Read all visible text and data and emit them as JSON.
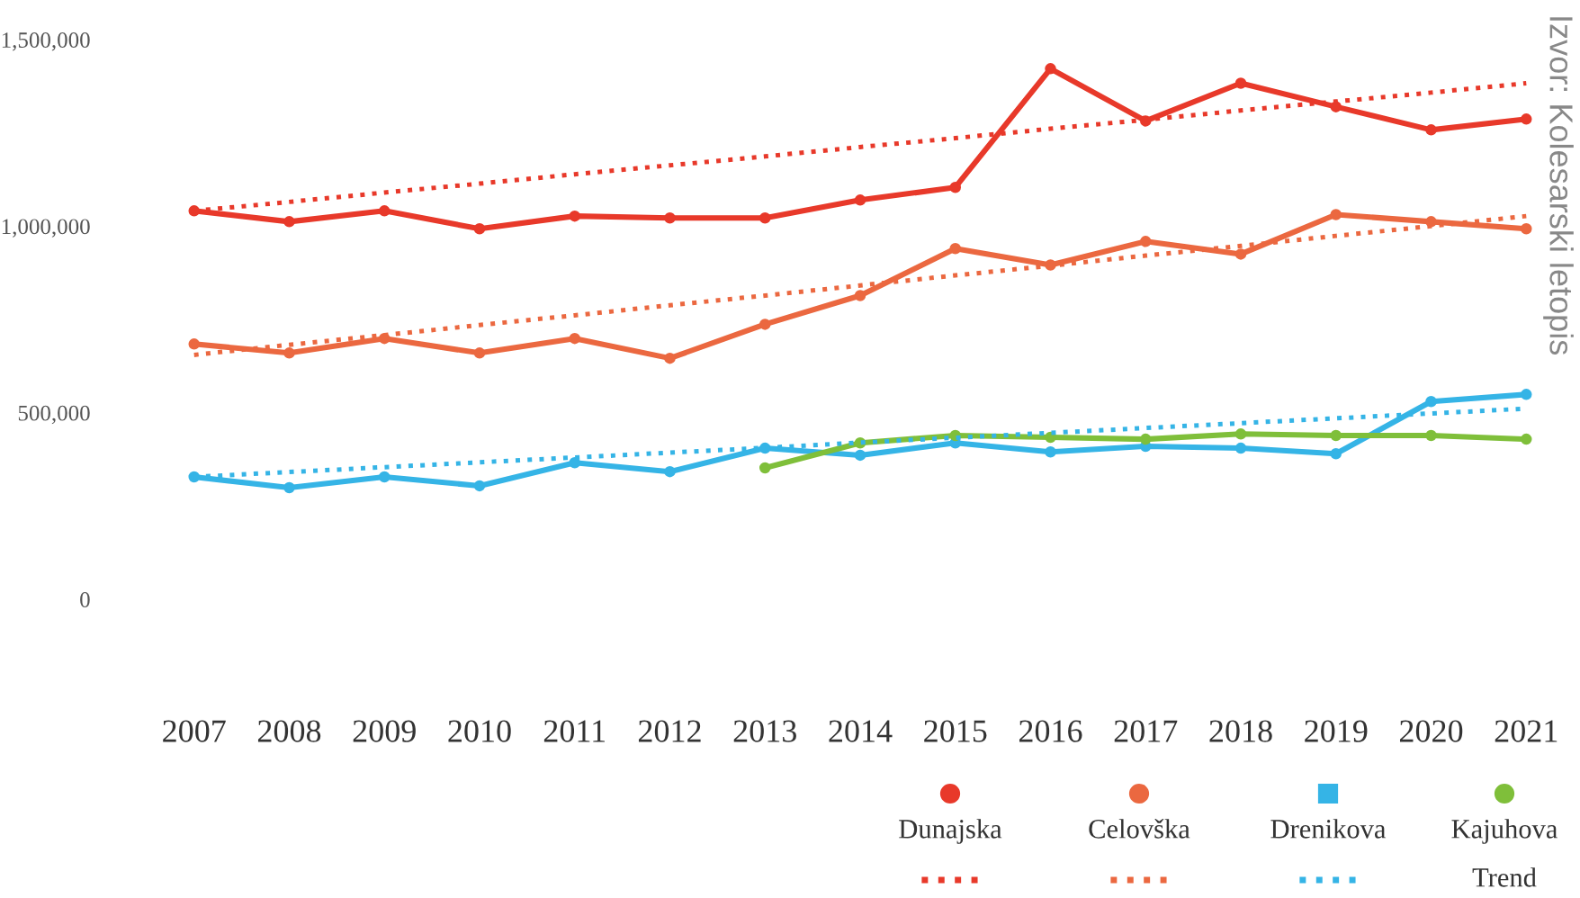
{
  "chart_data": {
    "type": "line",
    "categories": [
      "2007",
      "2008",
      "2009",
      "2010",
      "2011",
      "2012",
      "2013",
      "2014",
      "2015",
      "2016",
      "2017",
      "2018",
      "2019",
      "2020",
      "2021"
    ],
    "ylim": [
      0,
      1500000
    ],
    "yticks": [
      {
        "value": 0,
        "label": "0"
      },
      {
        "value": 500000,
        "label": "500,000"
      },
      {
        "value": 1000000,
        "label": "1,000,000"
      },
      {
        "value": 1500000,
        "label": "1,500,000"
      }
    ],
    "grid": false,
    "legend": "bottom right",
    "marker": "circle",
    "line_style": "solid",
    "series": [
      {
        "name": "Dunajska",
        "color": "#e8392a",
        "values": [
          1041000,
          1012000,
          1041000,
          993000,
          1027000,
          1022000,
          1022000,
          1070000,
          1104000,
          1422000,
          1282000,
          1383000,
          1320000,
          1258000,
          1287000
        ]
      },
      {
        "name": "Celovška",
        "color": "#eb6840",
        "values": [
          684000,
          660000,
          699000,
          660000,
          699000,
          646000,
          737000,
          814000,
          940000,
          896000,
          959000,
          925000,
          1031000,
          1012000,
          993000
        ]
      },
      {
        "name": "Drenikova",
        "color": "#35b4e6",
        "values": [
          328000,
          299000,
          328000,
          304000,
          366000,
          342000,
          405000,
          386000,
          419000,
          395000,
          410000,
          405000,
          390000,
          530000,
          549000
        ]
      },
      {
        "name": "Kajuhova",
        "color": "#7fbf3a",
        "values": [
          null,
          null,
          null,
          null,
          null,
          null,
          352000,
          419000,
          439000,
          434000,
          429000,
          443000,
          439000,
          439000,
          429000
        ]
      },
      {
        "type": "line",
        "color": "#e8392a",
        "line_style": "dotted",
        "marker": "none",
        "values": [
          1041000,
          1065000,
          1090000,
          1114000,
          1139000,
          1163000,
          1187000,
          1212000,
          1236000,
          1261000,
          1285000,
          1310000,
          1334000,
          1358000,
          1383000
        ]
      },
      {
        "type": "line",
        "color": "#eb6840",
        "line_style": "dotted",
        "marker": "none",
        "values": [
          655000,
          682000,
          708000,
          735000,
          761000,
          788000,
          814000,
          841000,
          868000,
          894000,
          921000,
          947000,
          974000,
          1000000,
          1027000
        ]
      },
      {
        "type": "line",
        "color": "#35b4e6",
        "line_style": "dotted",
        "marker": "none",
        "values": [
          328000,
          341000,
          354000,
          367000,
          380000,
          393000,
          406000,
          420000,
          433000,
          446000,
          459000,
          472000,
          485000,
          498000,
          511000
        ]
      }
    ],
    "annotations": [
      "Trend",
      "Izvor: Kolesarski letopis"
    ]
  }
}
